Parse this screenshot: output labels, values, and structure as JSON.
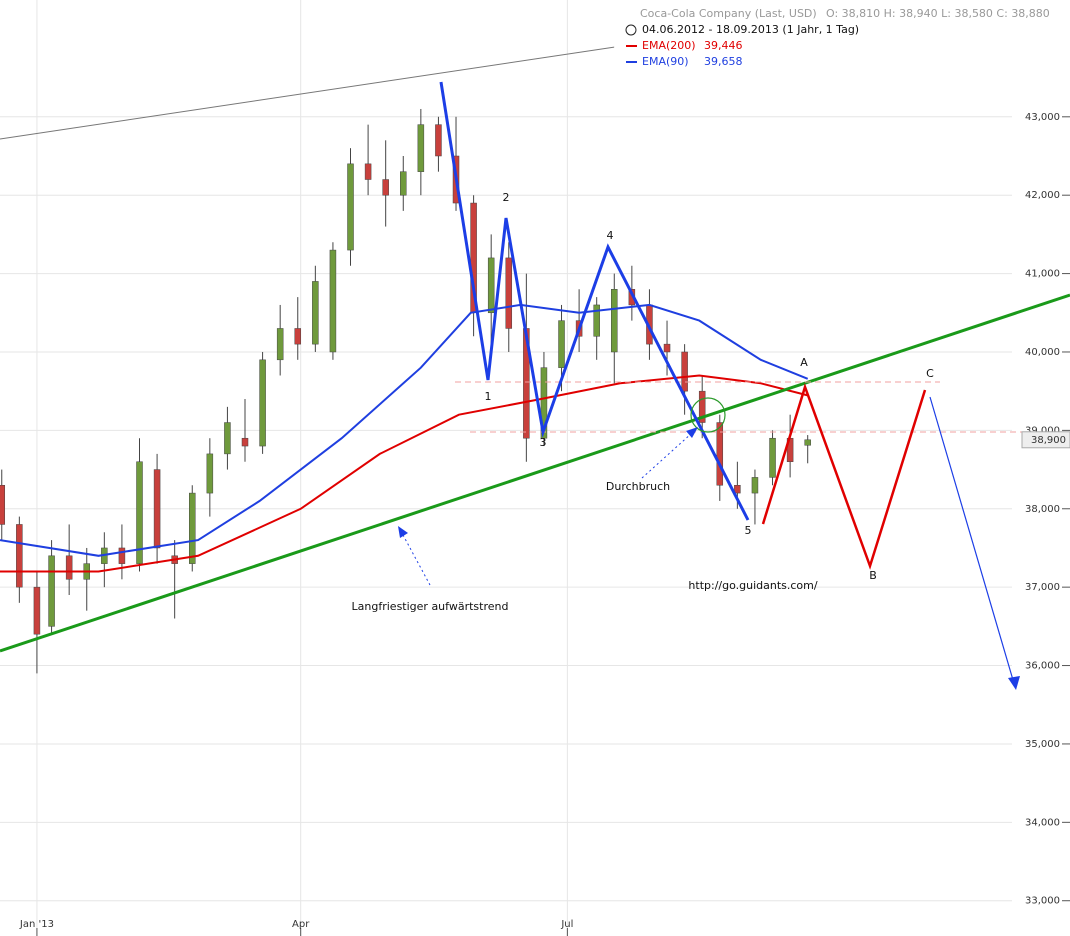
{
  "chart_data": {
    "type": "candlestick",
    "title": "Coca-Cola Company (Last, USD)",
    "ohlc_text": "O: 38,810  H: 38,940  L: 38,580  C: 38,880",
    "subtitle": "04.06.2012 - 18.09.2013 (1 Jahr, 1 Tag)",
    "last_price_label": "38,900",
    "x": [
      -12,
      -6,
      0,
      5,
      11,
      17,
      23,
      29,
      35,
      41,
      47,
      53,
      59,
      65,
      71,
      77,
      83,
      89,
      95,
      101,
      107,
      113,
      119,
      125,
      131,
      137,
      143,
      149,
      155,
      161,
      167,
      173,
      179,
      185,
      191,
      197,
      203,
      209,
      215,
      221,
      227,
      233,
      239,
      245,
      251,
      257,
      263
    ],
    "open": [
      38.3,
      37.8,
      37.0,
      36.5,
      37.4,
      37.1,
      37.3,
      37.5,
      37.3,
      38.5,
      37.4,
      37.3,
      38.2,
      38.7,
      38.9,
      38.8,
      39.9,
      40.3,
      40.1,
      40.0,
      41.3,
      42.4,
      42.2,
      42.0,
      42.3,
      42.9,
      42.5,
      41.9,
      40.5,
      41.2,
      40.3,
      38.9,
      39.8,
      40.4,
      40.2,
      40.0,
      40.8,
      40.6,
      40.1,
      40.0,
      39.5,
      39.1,
      38.3,
      38.2,
      38.4,
      38.9,
      38.81
    ],
    "high": [
      38.5,
      37.9,
      37.2,
      37.6,
      37.8,
      37.5,
      37.7,
      37.8,
      38.9,
      38.7,
      37.6,
      38.3,
      38.9,
      39.3,
      39.4,
      40.0,
      40.6,
      40.7,
      41.1,
      41.4,
      42.6,
      42.9,
      42.7,
      42.5,
      43.1,
      43.0,
      43.0,
      42.0,
      41.5,
      41.4,
      41.0,
      40.0,
      40.6,
      40.8,
      40.7,
      41.0,
      41.1,
      40.8,
      40.4,
      40.1,
      39.7,
      39.2,
      38.6,
      38.5,
      39.0,
      39.2,
      38.94
    ],
    "low": [
      37.6,
      36.8,
      35.9,
      36.4,
      36.9,
      36.7,
      37.0,
      37.1,
      37.2,
      37.3,
      36.6,
      37.2,
      37.9,
      38.5,
      38.6,
      38.7,
      39.7,
      39.9,
      40.0,
      39.9,
      41.1,
      42.0,
      41.6,
      41.8,
      42.0,
      42.3,
      41.8,
      40.2,
      40.1,
      40.0,
      38.6,
      38.8,
      39.5,
      40.0,
      39.9,
      39.6,
      40.4,
      39.9,
      39.7,
      39.2,
      38.9,
      38.1,
      38.0,
      37.8,
      38.3,
      38.4,
      38.58
    ],
    "close": [
      37.8,
      37.0,
      36.4,
      37.4,
      37.1,
      37.3,
      37.5,
      37.3,
      38.6,
      37.5,
      37.3,
      38.2,
      38.7,
      39.1,
      38.8,
      39.9,
      40.3,
      40.1,
      40.9,
      41.3,
      42.4,
      42.2,
      42.0,
      42.3,
      42.9,
      42.5,
      41.9,
      40.5,
      41.2,
      40.3,
      38.9,
      39.8,
      40.4,
      40.2,
      40.6,
      40.8,
      40.6,
      40.1,
      40.0,
      39.5,
      39.1,
      38.3,
      38.2,
      38.4,
      38.9,
      38.6,
      38.88
    ],
    "up_color": "#6f9a3c",
    "down_color": "#c8403c",
    "series": [
      {
        "name": "EMA(200)",
        "color": "#e00000",
        "last_label": "39,446",
        "x": [
          -12.6,
          21,
          55,
          90,
          117,
          144,
          172,
          199,
          226,
          247,
          263
        ],
        "values": [
          37.2,
          37.2,
          37.4,
          38.0,
          38.7,
          39.2,
          39.4,
          39.6,
          39.7,
          39.6,
          39.446
        ]
      },
      {
        "name": "EMA(90)",
        "color": "#1f3fe0",
        "last_label": "39,658",
        "x": [
          -12.6,
          21,
          55,
          76,
          104,
          131,
          148,
          165,
          185,
          209,
          226,
          247,
          263
        ],
        "values": [
          37.6,
          37.4,
          37.6,
          38.1,
          38.9,
          39.8,
          40.5,
          40.6,
          40.5,
          40.6,
          40.4,
          39.9,
          39.658
        ]
      }
    ],
    "xlim": [
      -12.6,
      352.5
    ],
    "ylim": [
      32.55,
      44.49
    ],
    "xticks": [
      {
        "value": 0,
        "label": "Jan '13"
      },
      {
        "value": 90,
        "label": "Apr"
      },
      {
        "value": 181,
        "label": "Jul"
      }
    ],
    "yticks": [
      {
        "value": 33,
        "label": "33,000"
      },
      {
        "value": 34,
        "label": "34,000"
      },
      {
        "value": 35,
        "label": "35,000"
      },
      {
        "value": 36,
        "label": "36,000"
      },
      {
        "value": 37,
        "label": "37,000"
      },
      {
        "value": 38,
        "label": "38,000"
      },
      {
        "value": 39,
        "label": "39,000"
      },
      {
        "value": 40,
        "label": "40,000"
      },
      {
        "value": 41,
        "label": "41,000"
      },
      {
        "value": 42,
        "label": "42,000"
      },
      {
        "value": 43,
        "label": "43,000"
      }
    ],
    "grid": true,
    "annotations": {
      "w1": "1",
      "w2": "2",
      "w3": "3",
      "w4": "4",
      "w5": "5",
      "a": "A",
      "b": "B",
      "c": "C",
      "breakout": "Durchbruch",
      "trend": "Langfriestiger aufwärtstrend",
      "url": "http://go.guidants.com/"
    }
  }
}
